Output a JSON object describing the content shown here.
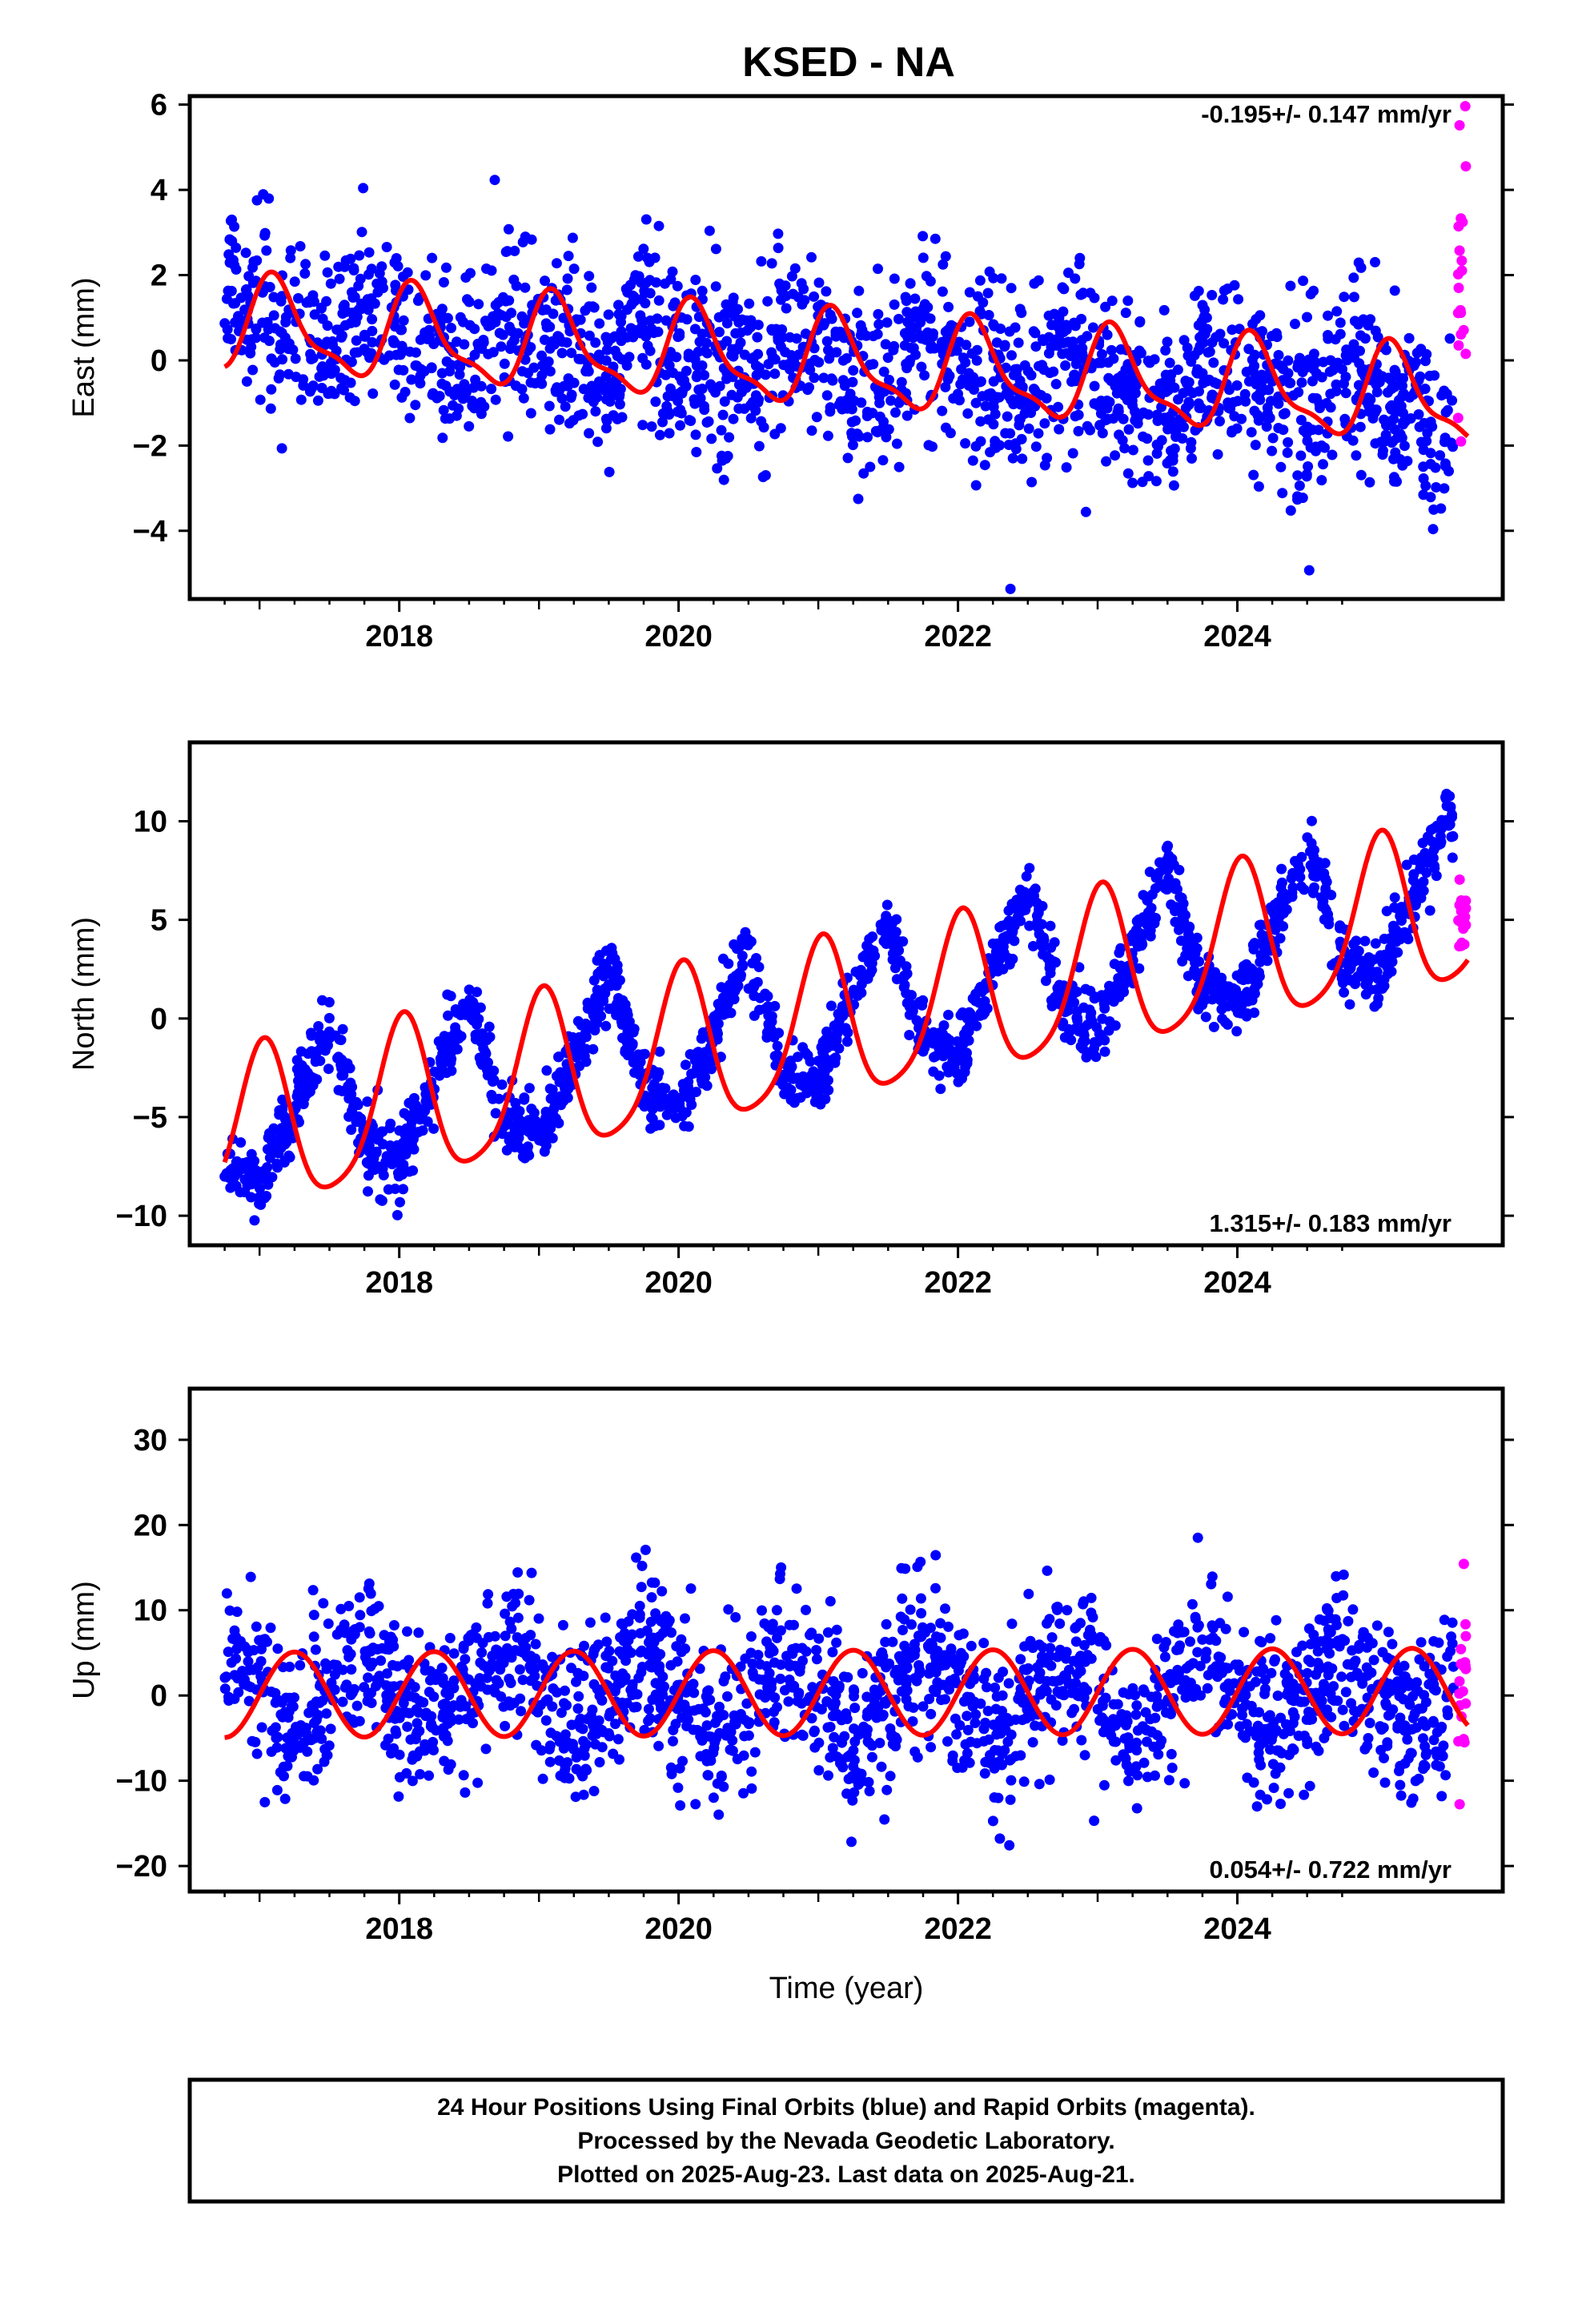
{
  "title": "KSED - NA",
  "footer": {
    "lines": [
      "24 Hour Positions Using Final Orbits (blue) and Rapid Orbits (magenta).",
      "Processed by the Nevada Geodetic Laboratory.",
      "Plotted on 2025-Aug-23. Last data on 2025-Aug-21."
    ]
  },
  "colors": {
    "final_orbits": "#0000ff",
    "rapid_orbits": "#ff00ff",
    "model": "#ff0000",
    "frame": "#000000"
  },
  "chart_data": [
    {
      "type": "scatter",
      "ylabel": "East (mm)",
      "xlabel": "",
      "rate_label": "-0.195+/- 0.147 mm/yr",
      "rate_position": "top-right",
      "xlim": [
        2016.5,
        2025.9
      ],
      "ylim": [
        -5.6,
        6.2
      ],
      "xticks": [
        2018,
        2020,
        2022,
        2024
      ],
      "yticks": [
        -4,
        -2,
        0,
        2,
        4,
        6
      ],
      "grid": false,
      "model": {
        "start": 2016.75,
        "end": 2025.65,
        "offset_at_2021": -0.03,
        "rate": -0.195,
        "annual": [
          0.75,
          0.7
        ],
        "semiannual": [
          0.25,
          0.25
        ]
      },
      "series": [
        {
          "color": "final_orbits",
          "start": 2016.75,
          "end": 2025.55,
          "scatter": 1.05,
          "x": [
            2016.8,
            2017.0,
            2017.25,
            2017.5,
            2017.75,
            2018.0,
            2018.25,
            2018.5,
            2018.75,
            2019.0,
            2019.25,
            2019.5,
            2019.75,
            2020.0,
            2020.25,
            2020.5,
            2020.75,
            2021.0,
            2021.25,
            2021.5,
            2021.75,
            2022.0,
            2022.25,
            2022.5,
            2022.75,
            2023.0,
            2023.25,
            2023.5,
            2023.75,
            2024.0,
            2024.25,
            2024.5,
            2024.75,
            2025.0,
            2025.25,
            2025.5
          ],
          "y": [
            1.5,
            0.9,
            0.6,
            0.3,
            1.2,
            0.6,
            0.4,
            -0.3,
            1.2,
            0.5,
            0.2,
            -0.4,
            0.9,
            0.1,
            0.0,
            -0.6,
            0.8,
            -0.2,
            -0.2,
            -0.6,
            0.9,
            -0.3,
            -0.5,
            -1.0,
            0.4,
            -0.6,
            -0.7,
            -1.3,
            0.2,
            -0.7,
            -0.8,
            -1.5,
            0.0,
            -1.0,
            -1.1,
            -1.8
          ]
        },
        {
          "color": "rapid_orbits",
          "start": 2025.58,
          "end": 2025.64,
          "scatter": 2.4,
          "x": [
            2025.6
          ],
          "y": [
            2.5
          ]
        }
      ]
    },
    {
      "type": "scatter",
      "ylabel": "North (mm)",
      "xlabel": "",
      "rate_label": "1.315+/- 0.183 mm/yr",
      "rate_position": "bottom-right",
      "xlim": [
        2016.5,
        2025.9
      ],
      "ylim": [
        -11.5,
        14.0
      ],
      "xticks": [
        2018,
        2020,
        2022,
        2024
      ],
      "yticks": [
        -10,
        -5,
        0,
        5,
        10
      ],
      "grid": false,
      "model": {
        "start": 2016.75,
        "end": 2025.65,
        "offset_at_2021": -0.5,
        "rate": 1.315,
        "annual": [
          4.0,
          0.6
        ],
        "semiannual": [
          0.6,
          0.4
        ]
      },
      "series": [
        {
          "color": "final_orbits",
          "start": 2016.75,
          "end": 2025.55,
          "scatter": 0.85,
          "x": [
            2016.8,
            2017.0,
            2017.25,
            2017.5,
            2017.75,
            2018.0,
            2018.25,
            2018.5,
            2018.75,
            2019.0,
            2019.25,
            2019.5,
            2019.75,
            2020.0,
            2020.25,
            2020.5,
            2020.75,
            2021.0,
            2021.25,
            2021.5,
            2021.75,
            2022.0,
            2022.25,
            2022.5,
            2022.75,
            2023.0,
            2023.25,
            2023.5,
            2023.75,
            2024.0,
            2024.25,
            2024.5,
            2024.75,
            2025.0,
            2025.25,
            2025.5
          ],
          "y": [
            -7.5,
            -8.5,
            -4.5,
            -0.5,
            -6.5,
            -7.0,
            -3.5,
            1.0,
            -5.0,
            -6.0,
            -2.0,
            2.5,
            -3.5,
            -4.5,
            -1.0,
            3.5,
            -2.5,
            -3.0,
            1.0,
            5.0,
            -1.0,
            -2.0,
            2.5,
            6.5,
            0.5,
            -0.5,
            3.5,
            7.5,
            1.5,
            1.0,
            4.5,
            9.0,
            3.0,
            2.0,
            6.0,
            10.0
          ]
        },
        {
          "color": "rapid_orbits",
          "start": 2025.58,
          "end": 2025.64,
          "scatter": 2.0,
          "x": [
            2025.6
          ],
          "y": [
            4.5
          ]
        }
      ]
    },
    {
      "type": "scatter",
      "ylabel": "Up (mm)",
      "xlabel": "Time (year)",
      "rate_label": "0.054+/- 0.722 mm/yr",
      "rate_position": "bottom-right",
      "xlim": [
        2016.5,
        2025.9
      ],
      "ylim": [
        -23.0,
        36.0
      ],
      "xticks": [
        2018,
        2020,
        2022,
        2024
      ],
      "yticks": [
        -20,
        -10,
        0,
        10,
        20,
        30
      ],
      "grid": false,
      "model": {
        "start": 2016.75,
        "end": 2025.65,
        "offset_at_2021": 0.3,
        "rate": 0.054,
        "annual": [
          0.0,
          5.0
        ],
        "semiannual": [
          0.0,
          0.0
        ]
      },
      "series": [
        {
          "color": "final_orbits",
          "start": 2016.75,
          "end": 2025.55,
          "scatter": 4.6,
          "x": [
            2016.8,
            2017.0,
            2017.25,
            2017.5,
            2017.75,
            2018.0,
            2018.25,
            2018.5,
            2018.75,
            2019.0,
            2019.25,
            2019.5,
            2019.75,
            2020.0,
            2020.25,
            2020.5,
            2020.75,
            2021.0,
            2021.25,
            2021.5,
            2021.75,
            2022.0,
            2022.25,
            2022.5,
            2022.75,
            2023.0,
            2023.25,
            2023.5,
            2023.75,
            2024.0,
            2024.25,
            2024.5,
            2024.75,
            2025.0,
            2025.25,
            2025.5
          ],
          "y": [
            5,
            0,
            -5,
            0,
            5,
            0,
            -5,
            0,
            5,
            0,
            -5,
            0,
            5,
            0,
            -5,
            0,
            5,
            0,
            -5,
            0,
            5,
            0,
            -5,
            0,
            5,
            0,
            -5,
            0,
            5,
            0,
            -5,
            0,
            5,
            0,
            -5,
            0
          ]
        },
        {
          "color": "rapid_orbits",
          "start": 2025.58,
          "end": 2025.64,
          "scatter": 7.0,
          "x": [
            2025.6
          ],
          "y": [
            0
          ]
        }
      ]
    }
  ]
}
